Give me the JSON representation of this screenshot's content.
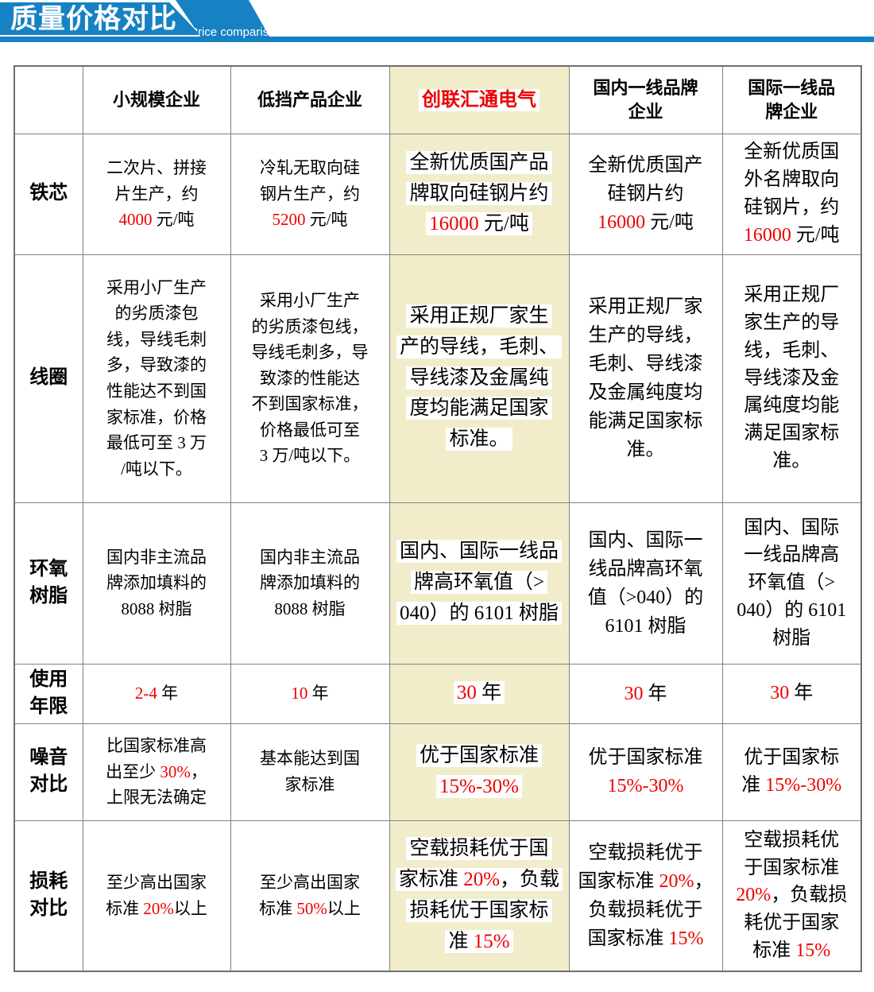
{
  "banner": {
    "title": "质量价格对比",
    "subtitle": "Price comparison"
  },
  "colors": {
    "banner_blue": "#1681c3",
    "brand_column_bg": "#f1edca",
    "accent_red": "#ee0000",
    "border_gray": "#828282"
  },
  "table": {
    "columns": [
      "",
      "小规模企业",
      "低挡产品企业",
      "创联汇通电气",
      "国内一线品牌\n企业",
      "国际一线品\n牌企业"
    ],
    "brand_column_index": 3,
    "rows": [
      {
        "label": "铁芯",
        "cells": [
          "二次片、拼接\n片生产，约\n{{4000}} 元/吨",
          "冷轧无取向硅\n钢片生产，约\n{{5200}} 元/吨",
          "全新优质国产品\n牌取向硅钢片约\n{{16000}} 元/吨",
          "全新优质国产\n硅钢片约\n{{16000}} 元/吨",
          "全新优质国\n外名牌取向\n硅钢片，约\n{{16000}} 元/吨"
        ]
      },
      {
        "label": "线圈",
        "cells": [
          "采用小厂生产\n的劣质漆包\n线，导线毛刺\n多，导致漆的\n性能达不到国\n家标准，价格\n最低可至 3 万\n/吨以下。",
          "采用小厂生产\n的劣质漆包线，\n导线毛刺多，导\n致漆的性能达\n不到国家标准，\n价格最低可至\n3 万/吨以下。",
          "采用正规厂家生\n产的导线，毛刺、\n导线漆及金属纯\n度均能满足国家\n标准。",
          "采用正规厂家\n生产的导线，\n毛刺、导线漆\n及金属纯度均\n能满足国家标\n准。",
          "采用正规厂\n家生产的导\n线，毛刺、\n导线漆及金\n属纯度均能\n满足国家标\n准。"
        ]
      },
      {
        "label": "环氧\n树脂",
        "cells": [
          "国内非主流品\n牌添加填料的\n8088 树脂",
          "国内非主流品\n牌添加填料的\n8088 树脂",
          "国内、国际一线品\n牌高环氧值（>\n040）的 6101 树脂",
          "国内、国际一\n线品牌高环氧\n值（>040）的\n6101 树脂",
          "国内、国际\n一线品牌高\n环氧值（>\n040）的 6101\n树脂"
        ]
      },
      {
        "label": "使用\n年限",
        "cells": [
          "{{2-4}} 年",
          "{{10}} 年",
          "{{30}} 年",
          "{{30}} 年",
          "{{30}} 年"
        ]
      },
      {
        "label": "噪音\n对比",
        "cells": [
          "比国家标准高\n出至少 {{30%}}，\n上限无法确定",
          "基本能达到国\n家标准",
          "优于国家标准\n{{15%-30%}}",
          "优于国家标准\n{{15%-30%}}",
          "优于国家标\n准 {{15%-30%}}"
        ]
      },
      {
        "label": "损耗\n对比",
        "cells": [
          "至少高出国家\n标准 {{20%}}以上",
          "至少高出国家\n标准 {{50%}}以上",
          "空载损耗优于国\n家标准 {{20%}}，负载\n损耗优于国家标\n准 {{15%}}",
          "空载损耗优于\n国家标准 {{20%}}，\n负载损耗优于\n国家标准 {{15%}}",
          "空载损耗优\n于国家标准\n{{20%}}，负载损\n耗优于国家\n标准 {{15%}}"
        ]
      }
    ]
  }
}
